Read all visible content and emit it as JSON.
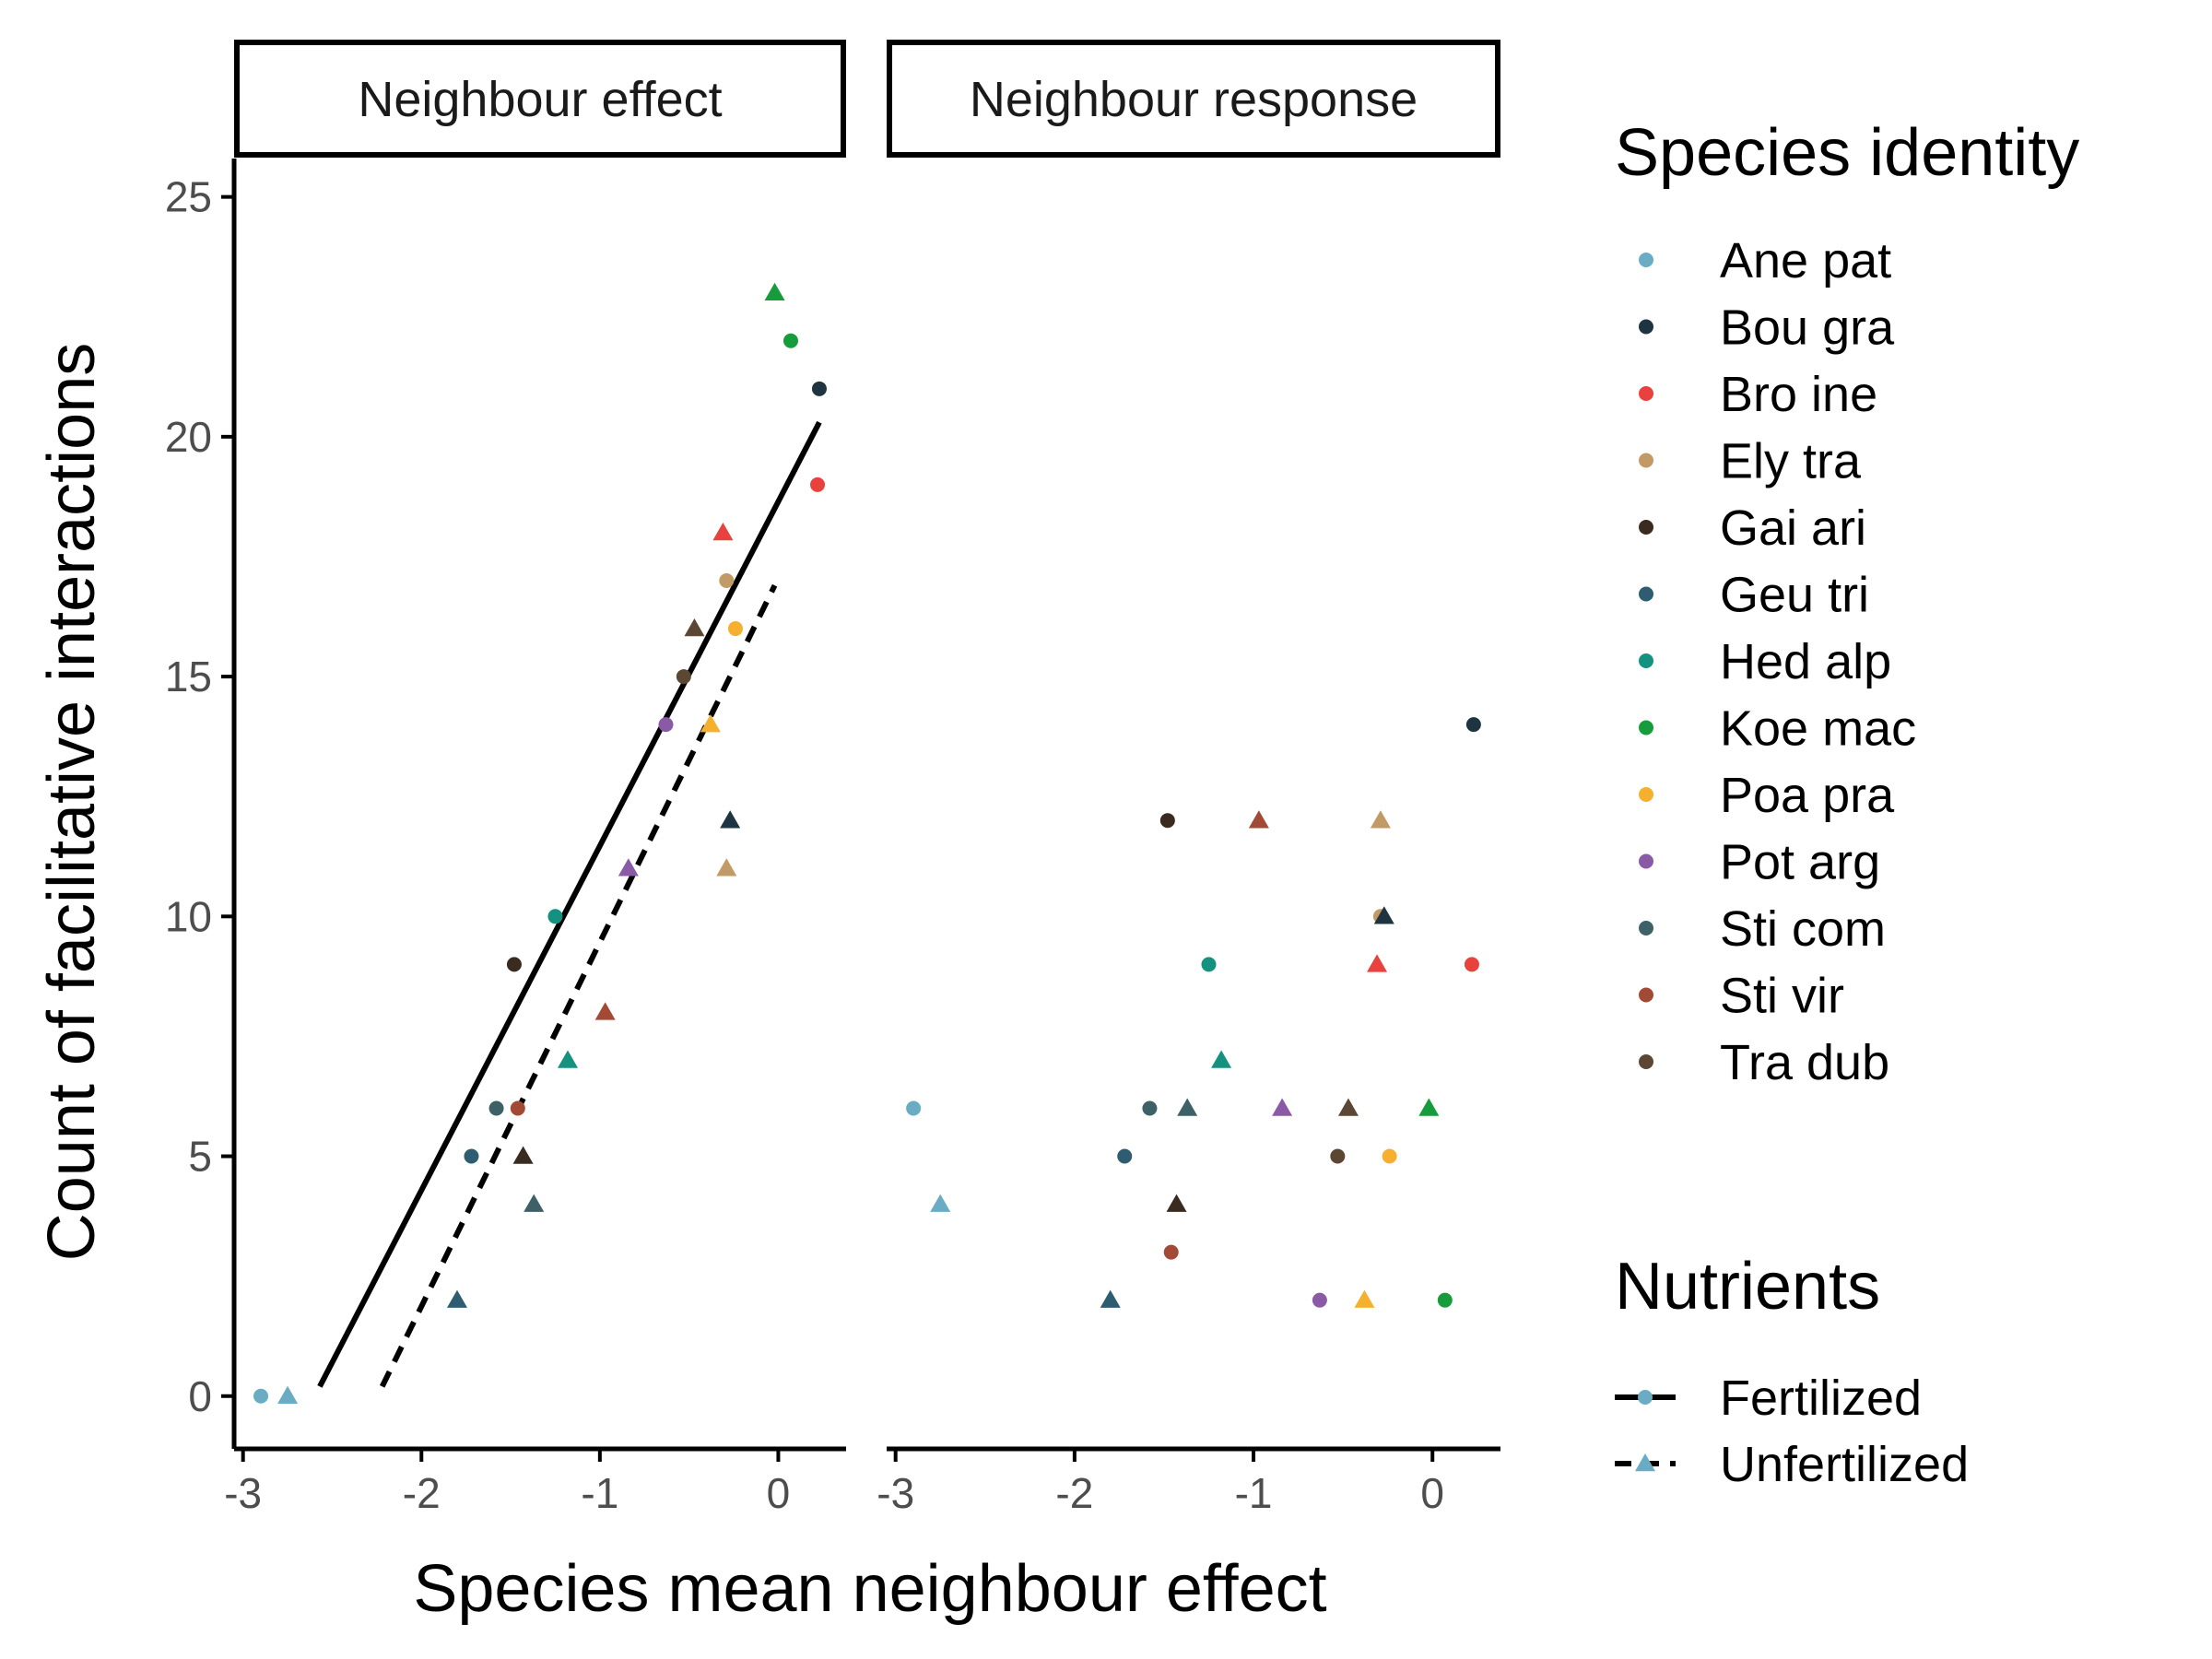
{
  "chart_data": {
    "type": "scatter",
    "xlabel": "Species mean neighbour effect",
    "ylabel": "Count of facilitative interactions",
    "xlim": [
      -3.05,
      0.38
    ],
    "ylim": [
      -1.1,
      25.8
    ],
    "x_ticks": [
      -3,
      -2,
      -1,
      0
    ],
    "y_ticks": [
      0,
      5,
      10,
      15,
      20,
      25
    ],
    "grid": false,
    "legend_position": "right",
    "panels": [
      "Neighbour effect",
      "Neighbour response"
    ],
    "legend": {
      "species_title": "Species identity",
      "nutrients_title": "Nutrients",
      "species": [
        {
          "name": "Ane pat",
          "color": "#6aacc4"
        },
        {
          "name": "Bou gra",
          "color": "#1e3440"
        },
        {
          "name": "Bro ine",
          "color": "#e8413e"
        },
        {
          "name": "Ely tra",
          "color": "#c29a66"
        },
        {
          "name": "Gai ari",
          "color": "#3a2b20"
        },
        {
          "name": "Geu tri",
          "color": "#2e5c70"
        },
        {
          "name": "Hed alp",
          "color": "#14917f"
        },
        {
          "name": "Koe mac",
          "color": "#179c3b"
        },
        {
          "name": "Poa pra",
          "color": "#f5b02f"
        },
        {
          "name": "Pot arg",
          "color": "#8a5aa6"
        },
        {
          "name": "Sti com",
          "color": "#3e6067"
        },
        {
          "name": "Sti vir",
          "color": "#a24a35"
        },
        {
          "name": "Tra dub",
          "color": "#5c4634"
        }
      ],
      "nutrients": [
        {
          "name": "Fertilized",
          "shape": "circle",
          "line": "solid"
        },
        {
          "name": "Unfertilized",
          "shape": "triangle",
          "line": "dashed"
        }
      ]
    },
    "series": [
      {
        "panel": "Neighbour effect",
        "points": [
          {
            "species": "Ane pat",
            "nutrients": "Fertilized",
            "x": -2.9,
            "y": 0
          },
          {
            "species": "Ane pat",
            "nutrients": "Unfertilized",
            "x": -2.75,
            "y": 0
          },
          {
            "species": "Geu tri",
            "nutrients": "Unfertilized",
            "x": -1.8,
            "y": 2
          },
          {
            "species": "Geu tri",
            "nutrients": "Fertilized",
            "x": -1.72,
            "y": 5
          },
          {
            "species": "Sti com",
            "nutrients": "Fertilized",
            "x": -1.58,
            "y": 6
          },
          {
            "species": "Sti com",
            "nutrients": "Unfertilized",
            "x": -1.37,
            "y": 4
          },
          {
            "species": "Sti vir",
            "nutrients": "Fertilized",
            "x": -1.46,
            "y": 6
          },
          {
            "species": "Gai ari",
            "nutrients": "Unfertilized",
            "x": -1.43,
            "y": 5
          },
          {
            "species": "Gai ari",
            "nutrients": "Fertilized",
            "x": -1.48,
            "y": 9
          },
          {
            "species": "Hed alp",
            "nutrients": "Fertilized",
            "x": -1.25,
            "y": 10
          },
          {
            "species": "Hed alp",
            "nutrients": "Unfertilized",
            "x": -1.18,
            "y": 7
          },
          {
            "species": "Sti vir",
            "nutrients": "Unfertilized",
            "x": -0.97,
            "y": 8
          },
          {
            "species": "Pot arg",
            "nutrients": "Unfertilized",
            "x": -0.84,
            "y": 11
          },
          {
            "species": "Pot arg",
            "nutrients": "Fertilized",
            "x": -0.63,
            "y": 14
          },
          {
            "species": "Tra dub",
            "nutrients": "Fertilized",
            "x": -0.53,
            "y": 15
          },
          {
            "species": "Tra dub",
            "nutrients": "Unfertilized",
            "x": -0.47,
            "y": 16
          },
          {
            "species": "Poa pra",
            "nutrients": "Unfertilized",
            "x": -0.38,
            "y": 14
          },
          {
            "species": "Poa pra",
            "nutrients": "Fertilized",
            "x": -0.24,
            "y": 16
          },
          {
            "species": "Ely tra",
            "nutrients": "Fertilized",
            "x": -0.29,
            "y": 17
          },
          {
            "species": "Ely tra",
            "nutrients": "Unfertilized",
            "x": -0.29,
            "y": 11
          },
          {
            "species": "Bou gra",
            "nutrients": "Unfertilized",
            "x": -0.27,
            "y": 12
          },
          {
            "species": "Bro ine",
            "nutrients": "Unfertilized",
            "x": -0.31,
            "y": 18
          },
          {
            "species": "Koe mac",
            "nutrients": "Unfertilized",
            "x": -0.02,
            "y": 23
          },
          {
            "species": "Koe mac",
            "nutrients": "Fertilized",
            "x": 0.07,
            "y": 22
          },
          {
            "species": "Bou gra",
            "nutrients": "Fertilized",
            "x": 0.23,
            "y": 21
          },
          {
            "species": "Bro ine",
            "nutrients": "Fertilized",
            "x": 0.22,
            "y": 19
          }
        ],
        "trend_lines": [
          {
            "nutrients": "Fertilized",
            "from": [
              -2.57,
              0.2
            ],
            "to": [
              0.23,
              20.3
            ]
          },
          {
            "nutrients": "Unfertilized",
            "from": [
              -2.22,
              0.2
            ],
            "to": [
              -0.02,
              16.9
            ]
          }
        ]
      },
      {
        "panel": "Neighbour response",
        "points": [
          {
            "species": "Ane pat",
            "nutrients": "Fertilized",
            "x": -2.9,
            "y": 6
          },
          {
            "species": "Ane pat",
            "nutrients": "Unfertilized",
            "x": -2.75,
            "y": 4
          },
          {
            "species": "Geu tri",
            "nutrients": "Unfertilized",
            "x": -1.8,
            "y": 2
          },
          {
            "species": "Geu tri",
            "nutrients": "Fertilized",
            "x": -1.72,
            "y": 5
          },
          {
            "species": "Sti com",
            "nutrients": "Fertilized",
            "x": -1.58,
            "y": 6
          },
          {
            "species": "Sti com",
            "nutrients": "Unfertilized",
            "x": -1.37,
            "y": 6
          },
          {
            "species": "Sti vir",
            "nutrients": "Fertilized",
            "x": -1.46,
            "y": 3
          },
          {
            "species": "Gai ari",
            "nutrients": "Unfertilized",
            "x": -1.43,
            "y": 4
          },
          {
            "species": "Gai ari",
            "nutrients": "Fertilized",
            "x": -1.48,
            "y": 12
          },
          {
            "species": "Hed alp",
            "nutrients": "Fertilized",
            "x": -1.25,
            "y": 9
          },
          {
            "species": "Hed alp",
            "nutrients": "Unfertilized",
            "x": -1.18,
            "y": 7
          },
          {
            "species": "Sti vir",
            "nutrients": "Unfertilized",
            "x": -0.97,
            "y": 12
          },
          {
            "species": "Pot arg",
            "nutrients": "Unfertilized",
            "x": -0.84,
            "y": 6
          },
          {
            "species": "Pot arg",
            "nutrients": "Fertilized",
            "x": -0.63,
            "y": 2
          },
          {
            "species": "Tra dub",
            "nutrients": "Fertilized",
            "x": -0.53,
            "y": 5
          },
          {
            "species": "Tra dub",
            "nutrients": "Unfertilized",
            "x": -0.47,
            "y": 6
          },
          {
            "species": "Poa pra",
            "nutrients": "Unfertilized",
            "x": -0.38,
            "y": 2
          },
          {
            "species": "Poa pra",
            "nutrients": "Fertilized",
            "x": -0.24,
            "y": 5
          },
          {
            "species": "Ely tra",
            "nutrients": "Fertilized",
            "x": -0.29,
            "y": 10
          },
          {
            "species": "Ely tra",
            "nutrients": "Unfertilized",
            "x": -0.29,
            "y": 12
          },
          {
            "species": "Bou gra",
            "nutrients": "Unfertilized",
            "x": -0.27,
            "y": 10
          },
          {
            "species": "Bro ine",
            "nutrients": "Unfertilized",
            "x": -0.31,
            "y": 9
          },
          {
            "species": "Koe mac",
            "nutrients": "Unfertilized",
            "x": -0.02,
            "y": 6
          },
          {
            "species": "Koe mac",
            "nutrients": "Fertilized",
            "x": 0.07,
            "y": 2
          },
          {
            "species": "Bou gra",
            "nutrients": "Fertilized",
            "x": 0.23,
            "y": 14
          },
          {
            "species": "Bro ine",
            "nutrients": "Fertilized",
            "x": 0.22,
            "y": 9
          }
        ],
        "trend_lines": []
      }
    ]
  }
}
